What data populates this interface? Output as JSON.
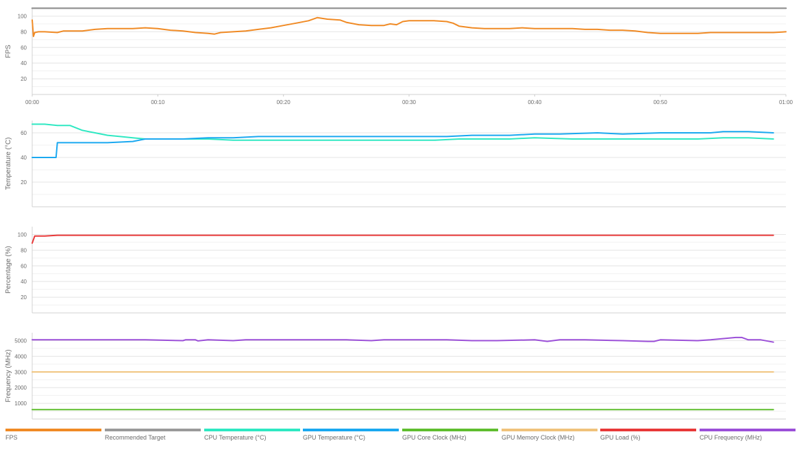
{
  "chart_data": [
    {
      "type": "line",
      "ylabel": "FPS",
      "ylim": [
        0,
        110
      ],
      "yticks": [
        20,
        40,
        60,
        80,
        100
      ],
      "xlim": [
        0,
        60
      ],
      "xtick_labels": [
        "00:00",
        "00:10",
        "00:20",
        "00:30",
        "00:40",
        "00:50",
        "01:00"
      ],
      "x_tick_minutes": [
        0,
        10,
        20,
        30,
        40,
        50,
        60
      ],
      "grid": true,
      "series": [
        {
          "name": "FPS",
          "color": "#f08a24",
          "x": [
            0,
            0.1,
            0.2,
            0.5,
            1,
            2,
            2.5,
            3.5,
            4,
            5,
            6,
            7,
            8,
            9,
            10,
            11,
            12,
            13,
            14,
            14.5,
            15,
            16,
            17,
            18,
            19,
            20,
            21,
            22,
            22.7,
            23.5,
            24.5,
            25,
            26,
            27,
            28,
            28.5,
            29,
            29.5,
            30,
            31,
            32,
            33,
            33.5,
            34,
            35,
            36,
            37,
            38,
            39,
            40,
            41,
            42,
            43,
            44,
            45,
            46,
            47,
            48,
            49,
            50,
            51,
            52,
            53,
            54,
            55,
            56,
            57,
            58,
            59,
            60
          ],
          "y": [
            95,
            74,
            79,
            80,
            80,
            79,
            81,
            81,
            81,
            83,
            84,
            84,
            84,
            85,
            84,
            82,
            81,
            79,
            78,
            77,
            79,
            80,
            81,
            83,
            85,
            88,
            91,
            94,
            98,
            96,
            95,
            92,
            89,
            88,
            88,
            90,
            89,
            93,
            94,
            94,
            94,
            93,
            91,
            87,
            85,
            84,
            84,
            84,
            85,
            84,
            84,
            84,
            84,
            83,
            83,
            82,
            82,
            81,
            79,
            78,
            78,
            78,
            78,
            79,
            79,
            79,
            79,
            79,
            79,
            80
          ]
        },
        {
          "name": "Recommended Target",
          "color": "#9a9a9a",
          "x": [
            0,
            60
          ],
          "y": [
            110,
            110
          ]
        }
      ]
    },
    {
      "type": "line",
      "ylabel": "Temperature (°C)",
      "ylim": [
        0,
        70
      ],
      "yticks": [
        20,
        40,
        60
      ],
      "xlim": [
        0,
        60
      ],
      "grid": true,
      "series": [
        {
          "name": "CPU Temperature (°C)",
          "color": "#2ee8c2",
          "x": [
            0,
            1,
            2,
            3,
            4,
            5,
            6,
            7,
            8,
            9,
            10,
            12,
            14,
            16,
            20,
            25,
            30,
            32,
            34,
            36,
            38,
            40,
            43,
            46,
            50,
            53,
            55,
            57,
            59
          ],
          "y": [
            67,
            67,
            66,
            66,
            62,
            60,
            58,
            57,
            56,
            55,
            55,
            55,
            55,
            54,
            54,
            54,
            54,
            54,
            55,
            55,
            55,
            56,
            55,
            55,
            55,
            55,
            56,
            56,
            55
          ]
        },
        {
          "name": "GPU Temperature (°C)",
          "color": "#1aa8f0",
          "x": [
            0,
            1.9,
            2,
            3,
            5,
            6,
            8,
            9,
            10,
            12,
            14,
            16,
            18,
            20,
            22,
            24,
            26,
            28,
            30,
            33,
            35,
            38,
            40,
            42,
            45,
            47,
            50,
            53,
            54,
            55,
            57,
            59
          ],
          "y": [
            40,
            40,
            52,
            52,
            52,
            52,
            53,
            55,
            55,
            55,
            56,
            56,
            57,
            57,
            57,
            57,
            57,
            57,
            57,
            57,
            58,
            58,
            59,
            59,
            60,
            59,
            60,
            60,
            60,
            61,
            61,
            60
          ]
        }
      ]
    },
    {
      "type": "line",
      "ylabel": "Percentage (%)",
      "ylim": [
        0,
        110
      ],
      "yticks": [
        20,
        40,
        60,
        80,
        100
      ],
      "xlim": [
        0,
        60
      ],
      "grid": true,
      "series": [
        {
          "name": "GPU Load (%)",
          "color": "#e83838",
          "x": [
            0,
            0.2,
            1,
            2,
            59
          ],
          "y": [
            89,
            98,
            98,
            99,
            99
          ]
        }
      ]
    },
    {
      "type": "line",
      "ylabel": "Frequency (MHz)",
      "ylim": [
        0,
        5500
      ],
      "yticks": [
        1000,
        2000,
        3000,
        4000,
        5000
      ],
      "xlim": [
        0,
        60
      ],
      "grid": true,
      "series": [
        {
          "name": "CPU Frequency (MHz)",
          "color": "#9b4fd8",
          "x": [
            0,
            5,
            9,
            12,
            12.2,
            13,
            13.2,
            14,
            16,
            17,
            18,
            20,
            25,
            27,
            28,
            29,
            30,
            33,
            35,
            37,
            40,
            41,
            42,
            43,
            44,
            47,
            49,
            49.5,
            50,
            53,
            54,
            56,
            56.5,
            57,
            58,
            59
          ],
          "y": [
            5050,
            5050,
            5050,
            5000,
            5050,
            5050,
            4980,
            5050,
            5000,
            5050,
            5050,
            5050,
            5050,
            5000,
            5050,
            5050,
            5050,
            5050,
            5000,
            5000,
            5050,
            4950,
            5050,
            5050,
            5050,
            5000,
            4950,
            4950,
            5050,
            5000,
            5050,
            5200,
            5200,
            5050,
            5050,
            4900
          ]
        },
        {
          "name": "GPU Memory Clock (MHz)",
          "color": "#f0c27a",
          "x": [
            0,
            59
          ],
          "y": [
            3000,
            3000
          ]
        },
        {
          "name": "GPU Core Clock (MHz)",
          "color": "#5fbd2e",
          "x": [
            0,
            59
          ],
          "y": [
            600,
            600
          ]
        }
      ]
    }
  ],
  "legend": [
    {
      "label": "FPS",
      "color": "#f08a24"
    },
    {
      "label": "Recommended Target",
      "color": "#9a9a9a"
    },
    {
      "label": "CPU Temperature (°C)",
      "color": "#2ee8c2"
    },
    {
      "label": "GPU Temperature (°C)",
      "color": "#1aa8f0"
    },
    {
      "label": "GPU Core Clock (MHz)",
      "color": "#5fbd2e"
    },
    {
      "label": "GPU Memory Clock (MHz)",
      "color": "#f0c27a"
    },
    {
      "label": "GPU Load (%)",
      "color": "#e83838"
    },
    {
      "label": "CPU Frequency (MHz)",
      "color": "#9b4fd8"
    }
  ]
}
